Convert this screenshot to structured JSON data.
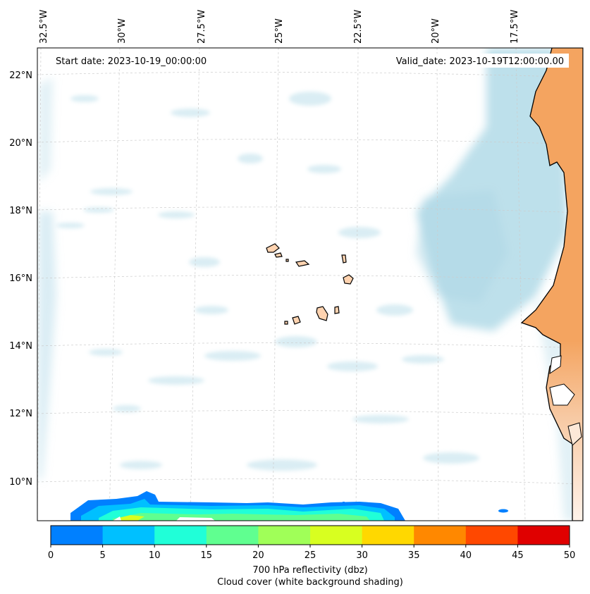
{
  "map": {
    "start_date_label": "Start date: 2023-10-19_00:00:00",
    "valid_date_label": "Valid_date: 2023-10-19T12:00:00.00",
    "lon_labels": [
      "32.5°W",
      "30°W",
      "27.5°W",
      "25°W",
      "22.5°W",
      "20°W",
      "17.5°W"
    ],
    "lat_labels": [
      "22°N",
      "20°N",
      "18°N",
      "16°N",
      "14°N",
      "12°N",
      "10°N"
    ],
    "colors": {
      "land_africa": "#f4a460",
      "land_islands": "#ffd3b0",
      "cloud": "#add8e6",
      "coast": "#000000"
    }
  },
  "colorbar": {
    "ticks": [
      "0",
      "5",
      "10",
      "15",
      "20",
      "25",
      "30",
      "35",
      "40",
      "45",
      "50"
    ],
    "colors": [
      "#0080ff",
      "#00c0ff",
      "#20ffd8",
      "#60ff90",
      "#a0ff58",
      "#d8ff20",
      "#ffd800",
      "#ff8800",
      "#ff4800",
      "#e00000"
    ],
    "label_line1": "700 hPa reflectivity (dbz)",
    "label_line2": "Cloud cover (white background shading)"
  }
}
